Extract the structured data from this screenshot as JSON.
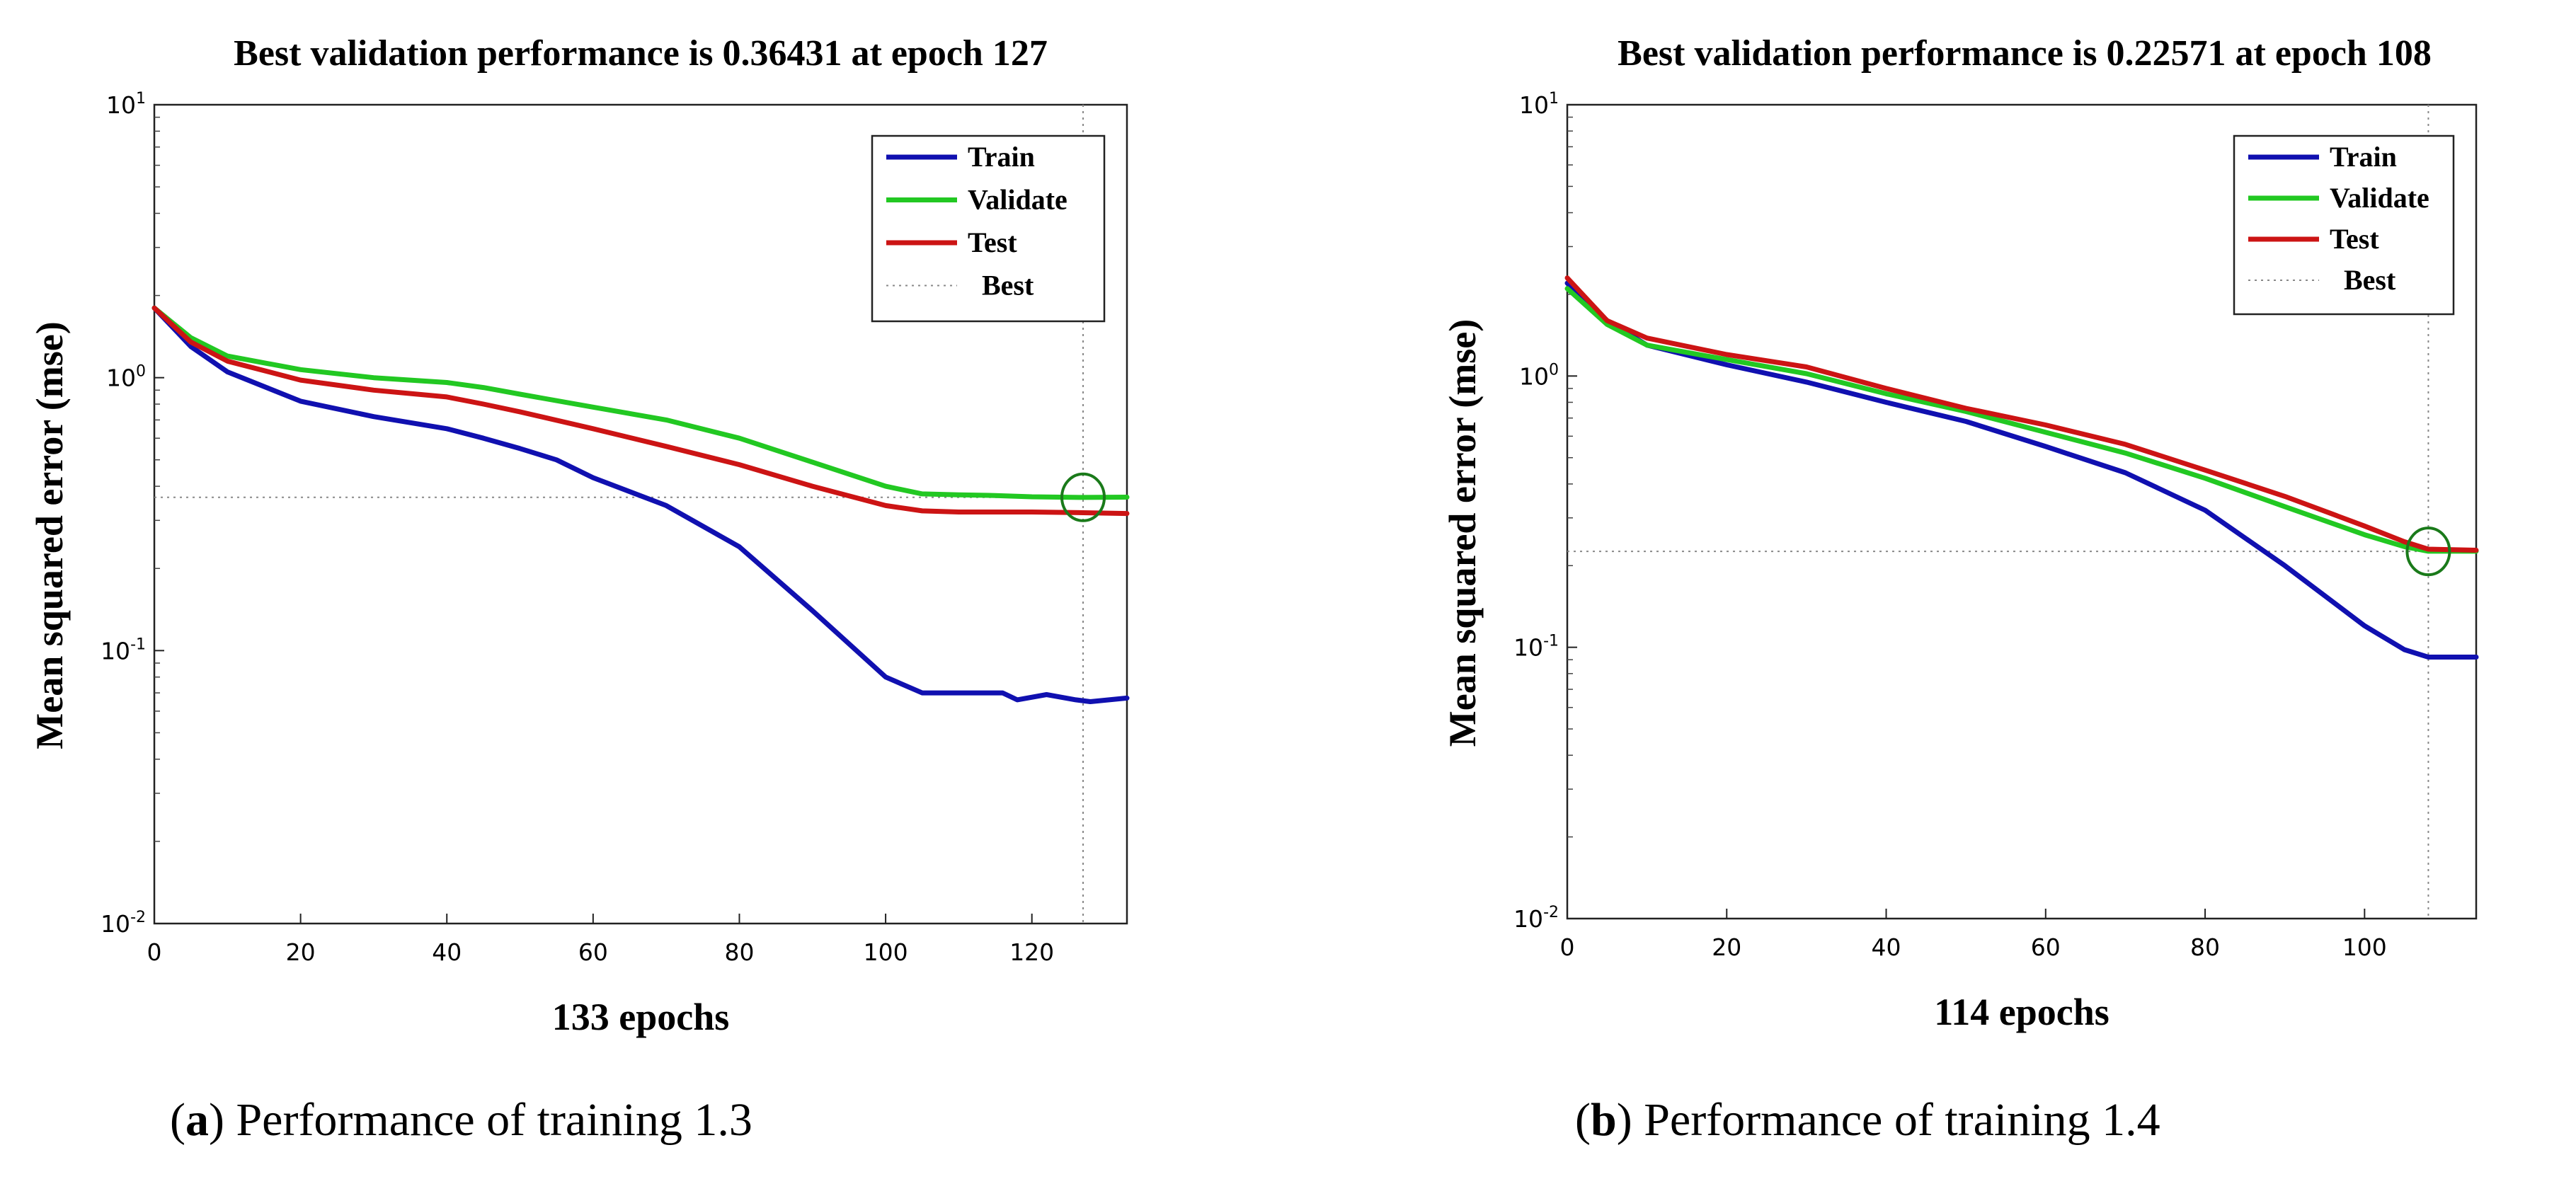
{
  "chart_data": [
    {
      "type": "line",
      "id": "a",
      "title": "Best validation performance is 0.36431 at epoch 127",
      "xlabel": "133 epochs",
      "ylabel": "Mean squared error  (mse)",
      "yscale": "log",
      "xlim": [
        0,
        133
      ],
      "ylim": [
        0.01,
        10
      ],
      "xticks": [
        0,
        20,
        40,
        60,
        80,
        100,
        120
      ],
      "yticks": [
        {
          "base": "10",
          "exp": "1",
          "value": 10
        },
        {
          "base": "10",
          "exp": "0",
          "value": 1
        },
        {
          "base": "10",
          "exp": "-1",
          "value": 0.1
        },
        {
          "base": "10",
          "exp": "-2",
          "value": 0.01
        }
      ],
      "best_epoch": 127,
      "best_value": 0.36431,
      "legend": [
        "Train",
        "Validate",
        "Test",
        "Best"
      ],
      "legend_position": "top-right",
      "series": [
        {
          "name": "Train",
          "color": "#1010b0",
          "x": [
            0,
            5,
            10,
            20,
            30,
            40,
            45,
            50,
            55,
            60,
            70,
            80,
            90,
            100,
            105,
            110,
            116,
            118,
            122,
            126,
            128,
            133
          ],
          "y": [
            1.8,
            1.3,
            1.05,
            0.82,
            0.72,
            0.65,
            0.6,
            0.55,
            0.5,
            0.43,
            0.34,
            0.24,
            0.14,
            0.08,
            0.07,
            0.07,
            0.07,
            0.066,
            0.069,
            0.066,
            0.065,
            0.067
          ]
        },
        {
          "name": "Validate",
          "color": "#22c822",
          "x": [
            0,
            5,
            10,
            20,
            30,
            40,
            45,
            50,
            60,
            70,
            80,
            90,
            100,
            105,
            110,
            115,
            120,
            127,
            133
          ],
          "y": [
            1.8,
            1.4,
            1.2,
            1.07,
            1.0,
            0.96,
            0.92,
            0.87,
            0.78,
            0.7,
            0.6,
            0.49,
            0.4,
            0.375,
            0.372,
            0.37,
            0.366,
            0.364,
            0.365
          ]
        },
        {
          "name": "Test",
          "color": "#cc1414",
          "x": [
            0,
            5,
            10,
            20,
            30,
            40,
            45,
            50,
            60,
            70,
            80,
            90,
            100,
            105,
            110,
            120,
            127,
            133
          ],
          "y": [
            1.8,
            1.35,
            1.15,
            0.98,
            0.9,
            0.85,
            0.8,
            0.75,
            0.65,
            0.56,
            0.48,
            0.4,
            0.34,
            0.325,
            0.322,
            0.322,
            0.32,
            0.318
          ]
        }
      ]
    },
    {
      "type": "line",
      "id": "b",
      "title": "Best validation performance is 0.22571 at epoch 108",
      "xlabel": "114 epochs",
      "ylabel": "Mean squared error  (mse)",
      "yscale": "log",
      "xlim": [
        0,
        114
      ],
      "ylim": [
        0.01,
        10
      ],
      "xticks": [
        0,
        20,
        40,
        60,
        80,
        100
      ],
      "yticks": [
        {
          "base": "10",
          "exp": "1",
          "value": 10
        },
        {
          "base": "10",
          "exp": "0",
          "value": 1
        },
        {
          "base": "10",
          "exp": "-1",
          "value": 0.1
        },
        {
          "base": "10",
          "exp": "-2",
          "value": 0.01
        }
      ],
      "best_epoch": 108,
      "best_value": 0.22571,
      "legend": [
        "Train",
        "Validate",
        "Test",
        "Best"
      ],
      "legend_position": "top-right",
      "series": [
        {
          "name": "Train",
          "color": "#1010b0",
          "x": [
            0,
            5,
            10,
            20,
            30,
            40,
            50,
            60,
            70,
            80,
            90,
            100,
            105,
            108,
            114
          ],
          "y": [
            2.2,
            1.6,
            1.3,
            1.1,
            0.95,
            0.8,
            0.68,
            0.55,
            0.44,
            0.32,
            0.2,
            0.12,
            0.098,
            0.092,
            0.092
          ]
        },
        {
          "name": "Validate",
          "color": "#22c822",
          "x": [
            0,
            5,
            10,
            20,
            30,
            40,
            50,
            60,
            70,
            80,
            90,
            100,
            105,
            108,
            114
          ],
          "y": [
            2.1,
            1.55,
            1.3,
            1.15,
            1.02,
            0.86,
            0.74,
            0.62,
            0.52,
            0.42,
            0.33,
            0.26,
            0.235,
            0.226,
            0.226
          ]
        },
        {
          "name": "Test",
          "color": "#cc1414",
          "x": [
            0,
            5,
            10,
            20,
            30,
            40,
            50,
            60,
            70,
            80,
            90,
            100,
            105,
            108,
            114
          ],
          "y": [
            2.3,
            1.6,
            1.38,
            1.2,
            1.08,
            0.9,
            0.76,
            0.66,
            0.56,
            0.45,
            0.36,
            0.28,
            0.245,
            0.23,
            0.228
          ]
        }
      ]
    }
  ],
  "captions": [
    {
      "letter": "a",
      "text": " Performance of training 1.3"
    },
    {
      "letter": "b",
      "text": " Performance of training 1.4"
    }
  ]
}
